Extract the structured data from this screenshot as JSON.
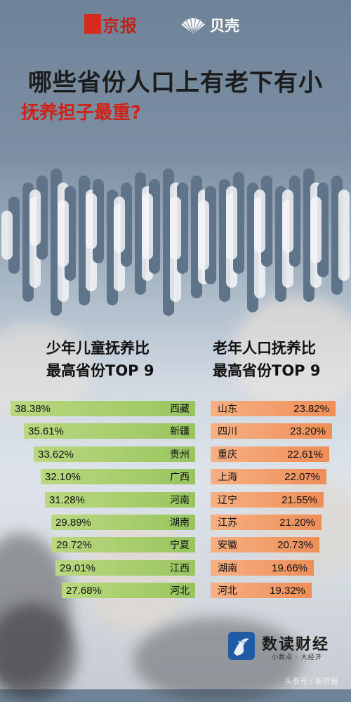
{
  "logos": {
    "jingbao": "京报",
    "beike": "贝壳"
  },
  "title": {
    "line1": "哪些省份人口上有老下有小",
    "line2": "抚养担子最重?"
  },
  "chart_data": [
    {
      "type": "bar",
      "title": "少年儿童抚养比 最高省份TOP 9",
      "title_lines": [
        "少年儿童抚养比",
        "最高省份TOP 9"
      ],
      "categories": [
        "西藏",
        "新疆",
        "贵州",
        "广西",
        "河南",
        "湖南",
        "宁夏",
        "江西",
        "河北"
      ],
      "values": [
        38.38,
        35.61,
        33.62,
        32.1,
        31.28,
        29.89,
        29.72,
        29.01,
        27.68
      ],
      "labels": [
        "38.38%",
        "35.61%",
        "33.62%",
        "32.10%",
        "31.28%",
        "29.89%",
        "29.72%",
        "29.01%",
        "27.68%"
      ],
      "color": "#a6cc6a"
    },
    {
      "type": "bar",
      "title": "老年人口抚养比 最高省份TOP 9",
      "title_lines": [
        "老年人口抚养比",
        "最高省份TOP 9"
      ],
      "categories": [
        "山东",
        "四川",
        "重庆",
        "上海",
        "辽宁",
        "江苏",
        "安徽",
        "湖南",
        "河北"
      ],
      "values": [
        23.82,
        23.2,
        22.61,
        22.07,
        21.55,
        21.2,
        20.73,
        19.66,
        19.32
      ],
      "labels": [
        "23.82%",
        "23.20%",
        "22.61%",
        "22.07%",
        "21.55%",
        "21.20%",
        "20.73%",
        "19.66%",
        "19.32%"
      ],
      "color": "#f29a66"
    }
  ],
  "brand": {
    "name": "数读财经",
    "tagline": "小数点 · 大经济"
  },
  "watermark": "头条号 / 新京报"
}
